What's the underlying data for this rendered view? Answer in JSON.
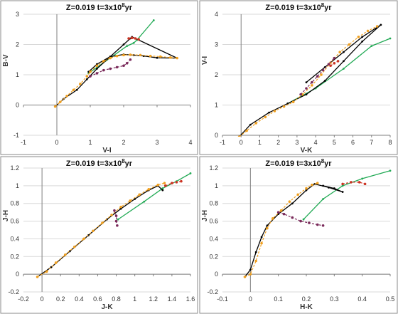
{
  "chart_data": [
    {
      "type": "scatter",
      "title": "Z=0.019  t=3x10",
      "title_sup": "8",
      "title_tail": "yr",
      "xlabel": "V-I",
      "ylabel": "B-V",
      "xlim": [
        -1,
        4
      ],
      "ylim": [
        -1,
        3
      ],
      "xticks": [
        -1,
        0,
        1,
        2,
        3,
        4
      ],
      "yticks": [
        -1,
        0,
        1,
        2,
        3
      ],
      "gridlines": "horizontal",
      "colors": {
        "green": "#22aa55",
        "black": "#000000",
        "orange": "#f0a020",
        "purple": "#7a2a5a",
        "red": "#cc3322"
      },
      "series": [
        {
          "color": "green",
          "style": "line",
          "x": [
            0.95,
            2.1,
            2.3,
            2.4,
            2.9
          ],
          "y": [
            1.05,
            1.95,
            2.05,
            2.15,
            2.8
          ]
        },
        {
          "color": "black",
          "style": "line",
          "x": [
            -0.05,
            0.2,
            0.6,
            0.9,
            1.2,
            1.6,
            2.0,
            2.2,
            2.25,
            2.35,
            3.6,
            3.0,
            2.6,
            2.3,
            2.0,
            1.6,
            1.2,
            0.95
          ],
          "y": [
            -0.05,
            0.2,
            0.5,
            0.85,
            1.2,
            1.6,
            2.0,
            2.2,
            2.25,
            2.2,
            1.55,
            1.56,
            1.62,
            1.65,
            1.67,
            1.6,
            1.35,
            1.1
          ]
        },
        {
          "color": "orange",
          "style": "dotted",
          "x": [
            -0.05,
            0.1,
            0.3,
            0.5,
            0.7,
            0.9,
            1.0,
            1.2,
            1.4,
            1.6,
            1.8,
            2.0,
            2.2,
            2.5,
            2.8,
            3.1,
            3.4,
            3.6
          ],
          "y": [
            -0.05,
            0.1,
            0.3,
            0.5,
            0.7,
            0.95,
            1.1,
            1.3,
            1.45,
            1.55,
            1.62,
            1.65,
            1.66,
            1.65,
            1.62,
            1.6,
            1.57,
            1.55
          ]
        },
        {
          "color": "purple",
          "style": "dotted",
          "x": [
            1.0,
            1.2,
            1.4,
            1.6,
            1.8,
            2.0,
            2.1,
            2.2
          ],
          "y": [
            0.95,
            1.05,
            1.15,
            1.2,
            1.25,
            1.3,
            1.38,
            1.5
          ]
        },
        {
          "color": "red",
          "style": "dotted",
          "x": [
            2.15,
            2.25,
            2.35,
            2.45
          ],
          "y": [
            2.2,
            2.22,
            2.2,
            2.17
          ]
        }
      ]
    },
    {
      "type": "scatter",
      "title": "Z=0.019  t=3x10",
      "title_sup": "8",
      "title_tail": "yr",
      "xlabel": "V-K",
      "ylabel": "V-I",
      "xlim": [
        -1,
        8
      ],
      "ylim": [
        0,
        4
      ],
      "xticks": [
        -1,
        0,
        1,
        2,
        3,
        4,
        5,
        6,
        7,
        8
      ],
      "yticks": [
        0,
        1,
        2,
        3,
        4
      ],
      "gridlines": "horizontal",
      "colors": {
        "green": "#22aa55",
        "black": "#000000",
        "orange": "#f0a020",
        "purple": "#7a2a5a",
        "red": "#cc3322"
      },
      "series": [
        {
          "color": "green",
          "style": "line",
          "x": [
            2.5,
            4.0,
            5.5,
            7.0,
            8.0
          ],
          "y": [
            1.05,
            1.55,
            2.2,
            2.95,
            3.2
          ]
        },
        {
          "color": "black",
          "style": "line",
          "x": [
            -0.1,
            0.5,
            1.5,
            2.5,
            3.5,
            4.5,
            5.5,
            6.5,
            7.5,
            6.5,
            5.5,
            4.5,
            3.5
          ],
          "y": [
            -0.05,
            0.35,
            0.75,
            1.05,
            1.35,
            1.8,
            2.45,
            3.1,
            3.65,
            3.25,
            2.75,
            2.25,
            1.75
          ]
        },
        {
          "color": "orange",
          "style": "dotted",
          "x": [
            -0.1,
            0.3,
            0.8,
            1.3,
            1.8,
            2.3,
            2.8,
            3.3,
            3.8,
            4.3,
            4.8,
            5.3,
            5.8,
            6.3,
            6.8,
            7.3
          ],
          "y": [
            -0.05,
            0.15,
            0.4,
            0.6,
            0.8,
            0.95,
            1.1,
            1.35,
            1.65,
            2.0,
            2.4,
            2.75,
            3.0,
            3.25,
            3.45,
            3.6
          ]
        },
        {
          "color": "purple",
          "style": "dotted",
          "x": [
            3.2,
            3.5,
            3.8,
            4.1,
            4.4,
            4.7,
            5.0
          ],
          "y": [
            1.35,
            1.55,
            1.75,
            1.95,
            2.15,
            2.35,
            2.55
          ]
        },
        {
          "color": "red",
          "style": "dotted",
          "x": [
            4.8,
            5.0,
            5.2
          ],
          "y": [
            2.3,
            2.38,
            2.45
          ]
        }
      ]
    },
    {
      "type": "scatter",
      "title": "Z=0.019  t=3x10",
      "title_sup": "8",
      "title_tail": "yr",
      "xlabel": "J-K",
      "ylabel": "J-H",
      "xlim": [
        -0.2,
        1.6
      ],
      "ylim": [
        -0.2,
        1.2
      ],
      "xticks": [
        -0.2,
        0,
        0.2,
        0.4,
        0.6,
        0.8,
        1,
        1.2,
        1.4,
        1.6
      ],
      "yticks": [
        -0.2,
        0,
        0.2,
        0.4,
        0.6,
        0.8,
        1,
        1.2
      ],
      "gridlines": "horizontal",
      "colors": {
        "green": "#22aa55",
        "black": "#000000",
        "orange": "#f0a020",
        "purple": "#7a2a5a",
        "red": "#cc3322"
      },
      "series": [
        {
          "color": "green",
          "style": "line",
          "x": [
            0.82,
            1.1,
            1.3,
            1.45,
            1.6
          ],
          "y": [
            0.62,
            0.82,
            0.97,
            1.05,
            1.14
          ]
        },
        {
          "color": "black",
          "style": "line",
          "x": [
            -0.05,
            0.1,
            0.3,
            0.5,
            0.7,
            0.85,
            1.0,
            1.15,
            1.25,
            1.3
          ],
          "y": [
            -0.03,
            0.08,
            0.26,
            0.44,
            0.62,
            0.74,
            0.85,
            0.95,
            1.0,
            0.95
          ]
        },
        {
          "color": "orange",
          "style": "dotted",
          "x": [
            -0.05,
            0.05,
            0.15,
            0.25,
            0.35,
            0.45,
            0.55,
            0.65,
            0.75,
            0.85,
            0.95,
            1.05,
            1.15,
            1.25,
            1.32
          ],
          "y": [
            -0.03,
            0.03,
            0.13,
            0.22,
            0.31,
            0.4,
            0.49,
            0.58,
            0.67,
            0.76,
            0.83,
            0.9,
            0.96,
            1.01,
            1.03
          ]
        },
        {
          "color": "purple",
          "style": "dotted",
          "x": [
            0.78,
            0.8,
            0.8,
            0.81
          ],
          "y": [
            0.72,
            0.66,
            0.6,
            0.55
          ]
        },
        {
          "color": "red",
          "style": "dotted",
          "x": [
            1.33,
            1.4,
            1.45,
            1.5
          ],
          "y": [
            1.0,
            1.03,
            1.04,
            1.05
          ]
        }
      ]
    },
    {
      "type": "scatter",
      "title": "Z=0.019  t=3x10",
      "title_sup": "8",
      "title_tail": "yr",
      "xlabel": "H-K",
      "ylabel": "J-H",
      "xlim": [
        -0.1,
        0.5
      ],
      "ylim": [
        -0.2,
        1.2
      ],
      "xticks": [
        -0.1,
        0,
        0.1,
        0.2,
        0.3,
        0.4,
        0.5
      ],
      "yticks": [
        -0.2,
        0,
        0.2,
        0.4,
        0.6,
        0.8,
        1,
        1.2
      ],
      "gridlines": "horizontal",
      "colors": {
        "green": "#22aa55",
        "black": "#000000",
        "orange": "#f0a020",
        "purple": "#7a2a5a",
        "red": "#cc3322"
      },
      "series": [
        {
          "color": "green",
          "style": "line",
          "x": [
            0.19,
            0.26,
            0.33,
            0.4,
            0.5
          ],
          "y": [
            0.62,
            0.85,
            1.0,
            1.08,
            1.17
          ]
        },
        {
          "color": "black",
          "style": "line",
          "x": [
            -0.02,
            0.0,
            0.02,
            0.04,
            0.06,
            0.1,
            0.15,
            0.2,
            0.23,
            0.28,
            0.33,
            0.3,
            0.26
          ],
          "y": [
            -0.03,
            0.05,
            0.25,
            0.42,
            0.55,
            0.68,
            0.8,
            0.95,
            1.02,
            0.98,
            0.93,
            0.97,
            1.0
          ]
        },
        {
          "color": "orange",
          "style": "dotted",
          "x": [
            -0.02,
            0.0,
            0.02,
            0.04,
            0.06,
            0.08,
            0.11,
            0.14,
            0.17,
            0.2,
            0.22,
            0.24
          ],
          "y": [
            -0.03,
            0.0,
            0.15,
            0.35,
            0.52,
            0.63,
            0.72,
            0.82,
            0.9,
            0.97,
            1.01,
            1.03
          ]
        },
        {
          "color": "purple",
          "style": "dotted",
          "x": [
            0.1,
            0.12,
            0.15,
            0.18,
            0.21,
            0.24,
            0.26
          ],
          "y": [
            0.7,
            0.68,
            0.64,
            0.6,
            0.58,
            0.56,
            0.55
          ]
        },
        {
          "color": "red",
          "style": "dotted",
          "x": [
            0.33,
            0.36,
            0.39,
            0.41
          ],
          "y": [
            1.02,
            1.04,
            1.04,
            1.02
          ]
        }
      ]
    }
  ]
}
